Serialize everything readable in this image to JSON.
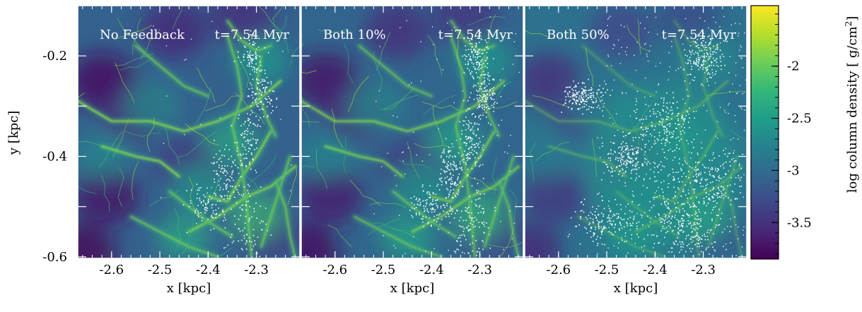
{
  "chart_data": {
    "type": "heatmap",
    "panels": [
      {
        "label": "No Feedback",
        "time": "t=7.54 Myr",
        "feedback_fraction": 0.0
      },
      {
        "label": "Both 10%",
        "time": "t=7.54 Myr",
        "feedback_fraction": 0.1
      },
      {
        "label": "Both 50%",
        "time": "t=7.54 Myr",
        "feedback_fraction": 0.5
      }
    ],
    "xlabel": "x [kpc]",
    "ylabel": "y [kpc]",
    "xlim": [
      -2.67,
      -2.21
    ],
    "ylim": [
      -0.603,
      -0.1
    ],
    "xticks": [
      -2.6,
      -2.5,
      -2.4,
      -2.3
    ],
    "xtick_labels": [
      "-2.6",
      "-2.5",
      "-2.4",
      "-2.3"
    ],
    "yticks": [
      -0.2,
      -0.4,
      -0.6
    ],
    "ytick_labels": [
      "-0.2",
      "-0.4",
      "-0.6"
    ],
    "colorbar": {
      "label": "log column density [ g/cm",
      "label_exp": "2",
      "label_close": "]",
      "colormap": "viridis",
      "range": [
        -3.85,
        -1.42
      ],
      "ticks": [
        -2.0,
        -2.5,
        -3.0,
        -3.5
      ],
      "tick_labels": [
        "-2",
        "-2.5",
        "-3",
        "-3.5"
      ]
    },
    "colormap_stops": [
      "#440154",
      "#482878",
      "#3e4989",
      "#31688e",
      "#26828e",
      "#1f9e89",
      "#35b779",
      "#6ece58",
      "#b5de2b",
      "#fde725"
    ],
    "background_level": -3.1
  }
}
